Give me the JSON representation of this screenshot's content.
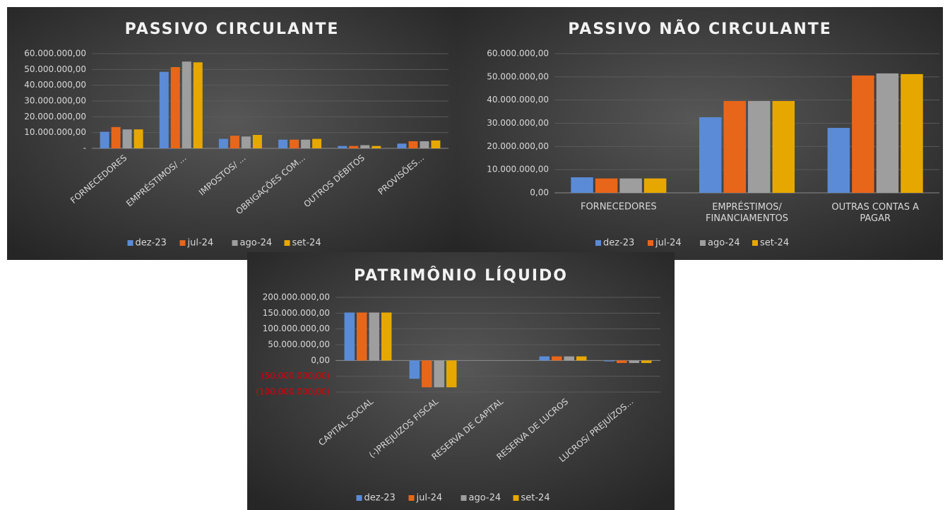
{
  "chart_data": [
    {
      "type": "bar",
      "title": "PASSIVO CIRCULANTE",
      "categories": [
        "FORNECEDORES",
        "EMPRÉSTIMOS/ ...",
        "IMPOSTOS/ ...",
        "OBRIGAÇÕES COM...",
        "OUTROS DÉBITOS",
        "PROVISÕES..."
      ],
      "series": [
        {
          "name": "dez-23",
          "color": "#5b8bd6",
          "values": [
            10500000,
            48500000,
            6000000,
            5500000,
            1500000,
            3000000
          ]
        },
        {
          "name": "jul-24",
          "color": "#e8661a",
          "values": [
            13500000,
            51500000,
            8000000,
            5500000,
            1500000,
            4500000
          ]
        },
        {
          "name": "ago-24",
          "color": "#9e9e9e",
          "values": [
            12000000,
            55000000,
            7500000,
            5500000,
            2000000,
            4500000
          ]
        },
        {
          "name": "set-24",
          "color": "#e6a800",
          "values": [
            12000000,
            54500000,
            8500000,
            6000000,
            1500000,
            5000000
          ]
        }
      ],
      "ylim": [
        0,
        60000000
      ],
      "yticks": [
        {
          "value": 0,
          "label": "-"
        },
        {
          "value": 10000000,
          "label": "10.000.000,00"
        },
        {
          "value": 20000000,
          "label": "20.000.000,00"
        },
        {
          "value": 30000000,
          "label": "30.000.000,00"
        },
        {
          "value": 40000000,
          "label": "40.000.000,00"
        },
        {
          "value": 50000000,
          "label": "50.000.000,00"
        },
        {
          "value": 60000000,
          "label": "60.000.000,00"
        }
      ],
      "grid": true,
      "legend": "bottom"
    },
    {
      "type": "bar",
      "title": "PASSIVO NÃO CIRCULANTE",
      "categories": [
        "FORNECEDORES",
        "EMPRÉSTIMOS/ FINANCIAMENTOS",
        "OUTRAS CONTAS A PAGAR"
      ],
      "series": [
        {
          "name": "dez-23",
          "color": "#5b8bd6",
          "values": [
            6700000,
            32600000,
            28000000
          ]
        },
        {
          "name": "jul-24",
          "color": "#e8661a",
          "values": [
            6200000,
            39600000,
            50600000
          ]
        },
        {
          "name": "ago-24",
          "color": "#9e9e9e",
          "values": [
            6200000,
            39600000,
            51500000
          ]
        },
        {
          "name": "set-24",
          "color": "#e6a800",
          "values": [
            6200000,
            39600000,
            51200000
          ]
        }
      ],
      "ylim": [
        0,
        60000000
      ],
      "yticks": [
        {
          "value": 0,
          "label": "0,00"
        },
        {
          "value": 10000000,
          "label": "10.000.000,00"
        },
        {
          "value": 20000000,
          "label": "20.000.000,00"
        },
        {
          "value": 30000000,
          "label": "30.000.000,00"
        },
        {
          "value": 40000000,
          "label": "40.000.000,00"
        },
        {
          "value": 50000000,
          "label": "50.000.000,00"
        },
        {
          "value": 60000000,
          "label": "60.000.000,00"
        }
      ],
      "grid": true,
      "legend": "bottom"
    },
    {
      "type": "bar",
      "title": "PATRIMÔNIO LÍQUIDO",
      "categories": [
        "CAPITAL SOCIAL",
        "(-)PREJUIZOS FISCAL",
        "RESERVA DE CAPITAL",
        "RESERVA DE LUCROS",
        "LUCROS/ PREJUÍZOS..."
      ],
      "series": [
        {
          "name": "dez-23",
          "color": "#5b8bd6",
          "values": [
            152000000,
            -58000000,
            0,
            13000000,
            -3000000
          ]
        },
        {
          "name": "jul-24",
          "color": "#e8661a",
          "values": [
            152000000,
            -85000000,
            0,
            13000000,
            -8000000
          ]
        },
        {
          "name": "ago-24",
          "color": "#9e9e9e",
          "values": [
            152000000,
            -85000000,
            0,
            13000000,
            -8000000
          ]
        },
        {
          "name": "set-24",
          "color": "#e6a800",
          "values": [
            152000000,
            -85000000,
            0,
            13000000,
            -8000000
          ]
        }
      ],
      "ylim": [
        -100000000,
        200000000
      ],
      "yticks": [
        {
          "value": -100000000,
          "label": "(100.000.000,00)"
        },
        {
          "value": -50000000,
          "label": "(50.000.000,00)"
        },
        {
          "value": 0,
          "label": "0,00"
        },
        {
          "value": 50000000,
          "label": "50.000.000,00"
        },
        {
          "value": 100000000,
          "label": "100.000.000,00"
        },
        {
          "value": 150000000,
          "label": "150.000.000,00"
        },
        {
          "value": 200000000,
          "label": "200.000.000,00"
        }
      ],
      "negative_tick_color": "#e00000",
      "grid": true,
      "legend": "bottom"
    }
  ]
}
